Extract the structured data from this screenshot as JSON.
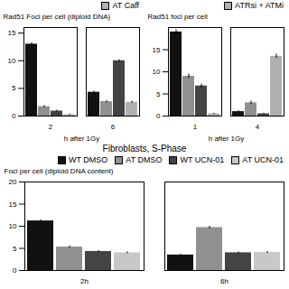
{
  "chart_data": [
    {
      "type": "bar",
      "categories": [
        "2",
        "6"
      ],
      "xlabel": "h after 1Gy",
      "ylabel": "Rad51 Foci per cell (diploid DNA)",
      "ylim": [
        0,
        16
      ],
      "yticks": [
        0,
        5,
        10,
        15
      ],
      "legend": "upper right",
      "series": [
        {
          "color": "#111111",
          "values": [
            13.0,
            4.3
          ],
          "errors": [
            0.25,
            0.2
          ]
        },
        {
          "color": "#909090",
          "values": [
            1.7,
            2.6
          ],
          "errors": [
            0.2,
            0.2
          ]
        },
        {
          "color": "#444444",
          "values": [
            0.9,
            10.0
          ],
          "errors": [
            0.15,
            0.2
          ]
        },
        {
          "name": "AT Caff",
          "color": "#b0b0b0",
          "values": [
            0.25,
            2.5
          ],
          "errors": [
            0.1,
            0.2
          ]
        }
      ]
    },
    {
      "type": "bar",
      "categories": [
        "1",
        "4"
      ],
      "xlabel": "h after 1Gy",
      "ylabel": "Rad51 foci per cell",
      "ylim": [
        0,
        20
      ],
      "yticks": [
        0,
        5,
        10,
        15
      ],
      "legend": "upper right",
      "series": [
        {
          "color": "#111111",
          "values": [
            19.0,
            1.0
          ],
          "errors": [
            0.5,
            0.2
          ]
        },
        {
          "color": "#909090",
          "values": [
            9.0,
            3.0
          ],
          "errors": [
            0.5,
            0.4
          ]
        },
        {
          "color": "#444444",
          "values": [
            6.8,
            0.5
          ],
          "errors": [
            0.4,
            0.15
          ]
        },
        {
          "name": "ATRsi + ATMi",
          "color": "#b0b0b0",
          "values": [
            0.5,
            13.5
          ],
          "errors": [
            0.15,
            0.5
          ]
        }
      ]
    },
    {
      "type": "bar",
      "title": "Fibroblasts, S-Phase",
      "categories": [
        "2h",
        "6h"
      ],
      "ylabel": "Foci per cell (diploid DNA content)",
      "ylim": [
        0,
        20
      ],
      "yticks": [
        0,
        5,
        10,
        15,
        20
      ],
      "legend": "upper right",
      "series": [
        {
          "name": "WT DMSO",
          "color": "#111111",
          "values": [
            11.2,
            3.5
          ],
          "errors": [
            0.25,
            0.2
          ]
        },
        {
          "name": "AT DMSO",
          "color": "#909090",
          "values": [
            5.3,
            9.7
          ],
          "errors": [
            0.25,
            0.3
          ]
        },
        {
          "name": "WT UCN-01",
          "color": "#444444",
          "values": [
            4.3,
            4.0
          ],
          "errors": [
            0.2,
            0.2
          ]
        },
        {
          "name": "AT UCN-01",
          "color": "#c8c8c8",
          "values": [
            4.0,
            4.1
          ],
          "errors": [
            0.2,
            0.2
          ]
        }
      ]
    }
  ]
}
